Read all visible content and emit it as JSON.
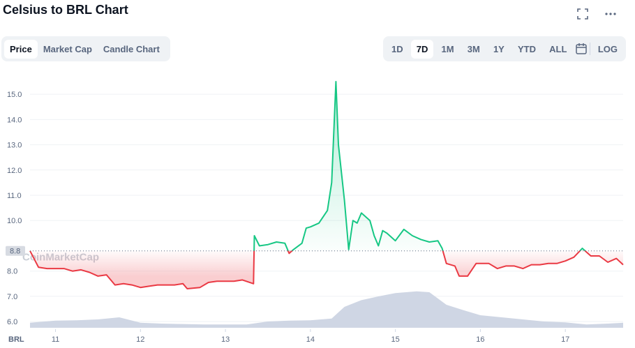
{
  "header": {
    "title": "Celsius to BRL Chart"
  },
  "tabs": {
    "items": [
      "Price",
      "Market Cap",
      "Candle Chart"
    ],
    "selected": 0
  },
  "ranges": {
    "items": [
      "1D",
      "7D",
      "1M",
      "3M",
      "1Y",
      "YTD",
      "ALL"
    ],
    "selected": 1,
    "log": "LOG"
  },
  "chart_data": {
    "type": "line",
    "x_label": "BRL",
    "watermark": "CoinMarketCap",
    "baseline": {
      "value": 8.8,
      "label": "8.8"
    },
    "up_color": "#16c784",
    "down_color": "#ea3943",
    "x": [
      10.7,
      10.8,
      10.9,
      11.0,
      11.1,
      11.2,
      11.3,
      11.4,
      11.5,
      11.6,
      11.7,
      11.8,
      11.9,
      12.0,
      12.1,
      12.2,
      12.3,
      12.4,
      12.5,
      12.55,
      12.7,
      12.8,
      12.9,
      13.0,
      13.1,
      13.2,
      13.33,
      13.34,
      13.4,
      13.5,
      13.6,
      13.7,
      13.75,
      13.8,
      13.9,
      13.95,
      14.0,
      14.1,
      14.2,
      14.25,
      14.3,
      14.33,
      14.4,
      14.45,
      14.5,
      14.55,
      14.6,
      14.7,
      14.75,
      14.8,
      14.85,
      14.9,
      15.0,
      15.1,
      15.2,
      15.3,
      15.4,
      15.5,
      15.55,
      15.6,
      15.7,
      15.75,
      15.85,
      15.95,
      16.0,
      16.1,
      16.2,
      16.3,
      16.4,
      16.5,
      16.6,
      16.7,
      16.8,
      16.9,
      17.0,
      17.1,
      17.2,
      17.3,
      17.4,
      17.5,
      17.6,
      17.68
    ],
    "series": [
      {
        "name": "Price",
        "values": [
          8.8,
          8.15,
          8.1,
          8.1,
          8.1,
          8.0,
          8.05,
          7.95,
          7.8,
          7.85,
          7.45,
          7.5,
          7.45,
          7.35,
          7.4,
          7.45,
          7.45,
          7.45,
          7.5,
          7.3,
          7.35,
          7.55,
          7.6,
          7.6,
          7.6,
          7.65,
          7.5,
          9.4,
          9.0,
          9.05,
          9.15,
          9.1,
          8.7,
          8.85,
          9.1,
          9.7,
          9.75,
          9.9,
          10.4,
          11.5,
          15.5,
          13.0,
          10.8,
          8.85,
          10.0,
          9.9,
          10.3,
          10.0,
          9.4,
          9.0,
          9.6,
          9.5,
          9.2,
          9.65,
          9.4,
          9.25,
          9.15,
          9.2,
          8.9,
          8.3,
          8.2,
          7.8,
          7.8,
          8.3,
          8.3,
          8.3,
          8.1,
          8.2,
          8.2,
          8.1,
          8.25,
          8.25,
          8.3,
          8.3,
          8.4,
          8.55,
          8.9,
          8.6,
          8.6,
          8.35,
          8.5,
          8.25
        ]
      }
    ],
    "volume": {
      "x": [
        10.7,
        11,
        11.25,
        11.5,
        11.75,
        12,
        12.25,
        12.5,
        12.75,
        13,
        13.25,
        13.5,
        13.75,
        14,
        14.25,
        14.4,
        14.6,
        14.8,
        15,
        15.25,
        15.4,
        15.6,
        15.8,
        16,
        16.25,
        16.5,
        16.75,
        17,
        17.25,
        17.5,
        17.68
      ],
      "values": [
        12,
        17,
        18,
        20,
        25,
        12,
        10,
        9,
        8,
        8,
        8,
        15,
        17,
        18,
        22,
        50,
        66,
        75,
        83,
        87,
        85,
        55,
        42,
        30,
        25,
        20,
        15,
        13,
        8,
        10,
        12
      ],
      "ylim": [
        0,
        100
      ],
      "color": "#cfd6e4"
    },
    "xlim": [
      10.7,
      17.68
    ],
    "xticks": [
      11,
      12,
      13,
      14,
      15,
      16,
      17
    ],
    "ylim": [
      5.7,
      15.97
    ],
    "yticks": [
      {
        "value": 6,
        "label": "6.0"
      },
      {
        "value": 7,
        "label": "7.0"
      },
      {
        "value": 8,
        "label": "8.0"
      },
      {
        "value": 10,
        "label": "10.0"
      },
      {
        "value": 11,
        "label": "11.0"
      },
      {
        "value": 12,
        "label": "12.0"
      },
      {
        "value": 13,
        "label": "13.0"
      },
      {
        "value": 14,
        "label": "14.0"
      },
      {
        "value": 15,
        "label": "15.0"
      }
    ],
    "grid": true
  }
}
